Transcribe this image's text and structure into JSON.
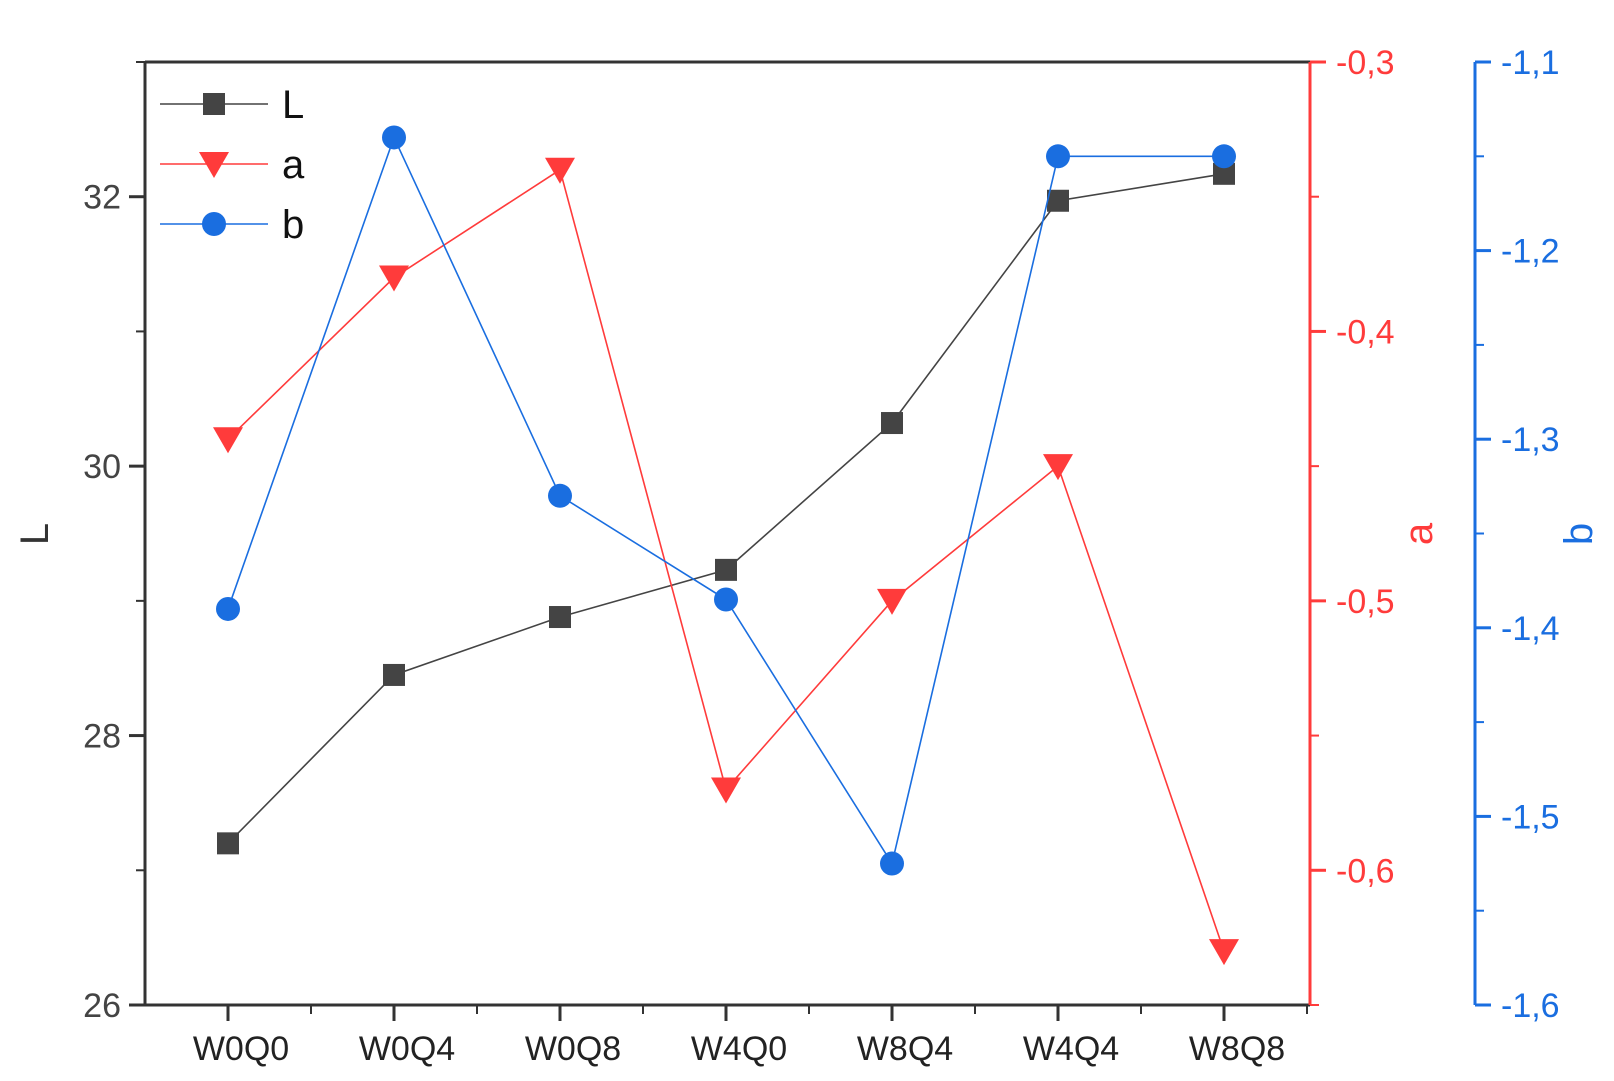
{
  "chart_data": {
    "type": "line",
    "categories": [
      "W0Q0",
      "W0Q4",
      "W0Q8",
      "W4Q0",
      "W8Q4",
      "W4Q4",
      "W8Q8"
    ],
    "series": [
      {
        "name": "L",
        "axis": "left",
        "color": "#444444",
        "marker": "square",
        "values": [
          27.2,
          28.45,
          28.88,
          29.23,
          30.32,
          31.97,
          32.17
        ]
      },
      {
        "name": "a",
        "axis": "right1",
        "color": "#ff3b3b",
        "marker": "triangle-down",
        "values": [
          -0.44,
          -0.38,
          -0.34,
          -0.57,
          -0.5,
          -0.45,
          -0.63
        ]
      },
      {
        "name": "b",
        "axis": "right2",
        "color": "#1a6ee0",
        "marker": "circle",
        "values": [
          -1.39,
          -1.14,
          -1.33,
          -1.385,
          -1.525,
          -1.15,
          -1.15
        ]
      }
    ],
    "axes": {
      "left": {
        "label": "L",
        "min": 26,
        "max": 33,
        "ticks": [
          "26",
          "28",
          "30",
          "32"
        ],
        "tick_values": [
          26,
          28,
          30,
          32
        ],
        "color": "#444444"
      },
      "right1": {
        "label": "a",
        "min": -0.65,
        "max": -0.3,
        "ticks": [
          "-0,3",
          "-0,4",
          "-0,5",
          "-0,6"
        ],
        "tick_values": [
          -0.3,
          -0.4,
          -0.5,
          -0.6
        ],
        "color": "#ff3b3b"
      },
      "right2": {
        "label": "b",
        "min": -1.6,
        "max": -1.1,
        "ticks": [
          "-1,1",
          "-1,2",
          "-1,3",
          "-1,4",
          "-1,5",
          "-1,6"
        ],
        "tick_values": [
          -1.1,
          -1.2,
          -1.3,
          -1.4,
          -1.5,
          -1.6
        ],
        "color": "#1a6ee0"
      }
    },
    "legend": {
      "position": "top-left",
      "entries": [
        "L",
        "a",
        "b"
      ]
    },
    "grid": false
  }
}
